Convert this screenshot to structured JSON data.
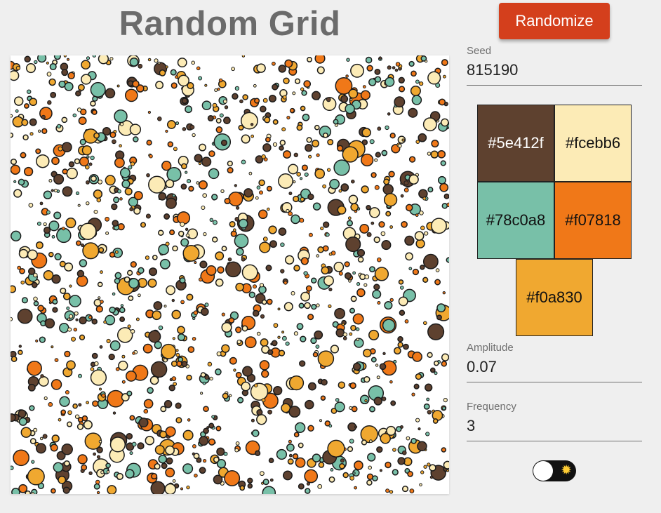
{
  "title": "Random Grid",
  "randomize_label": "Randomize",
  "seed": {
    "label": "Seed",
    "value": "815190"
  },
  "palette": [
    {
      "hex": "#5e412f",
      "label": "#5e412f",
      "text_color": "#ffffff"
    },
    {
      "hex": "#fcebb6",
      "label": "#fcebb6",
      "text_color": "#111111"
    },
    {
      "hex": "#78c0a8",
      "label": "#78c0a8",
      "text_color": "#111111"
    },
    {
      "hex": "#f07818",
      "label": "#f07818",
      "text_color": "#111111"
    },
    {
      "hex": "#f0a830",
      "label": "#f0a830",
      "text_color": "#111111"
    }
  ],
  "amplitude": {
    "label": "Amplitude",
    "value": "0.07"
  },
  "frequency": {
    "label": "Frequency",
    "value": "3"
  },
  "theme_toggle": {
    "icon": "sun-icon",
    "state": "off"
  }
}
